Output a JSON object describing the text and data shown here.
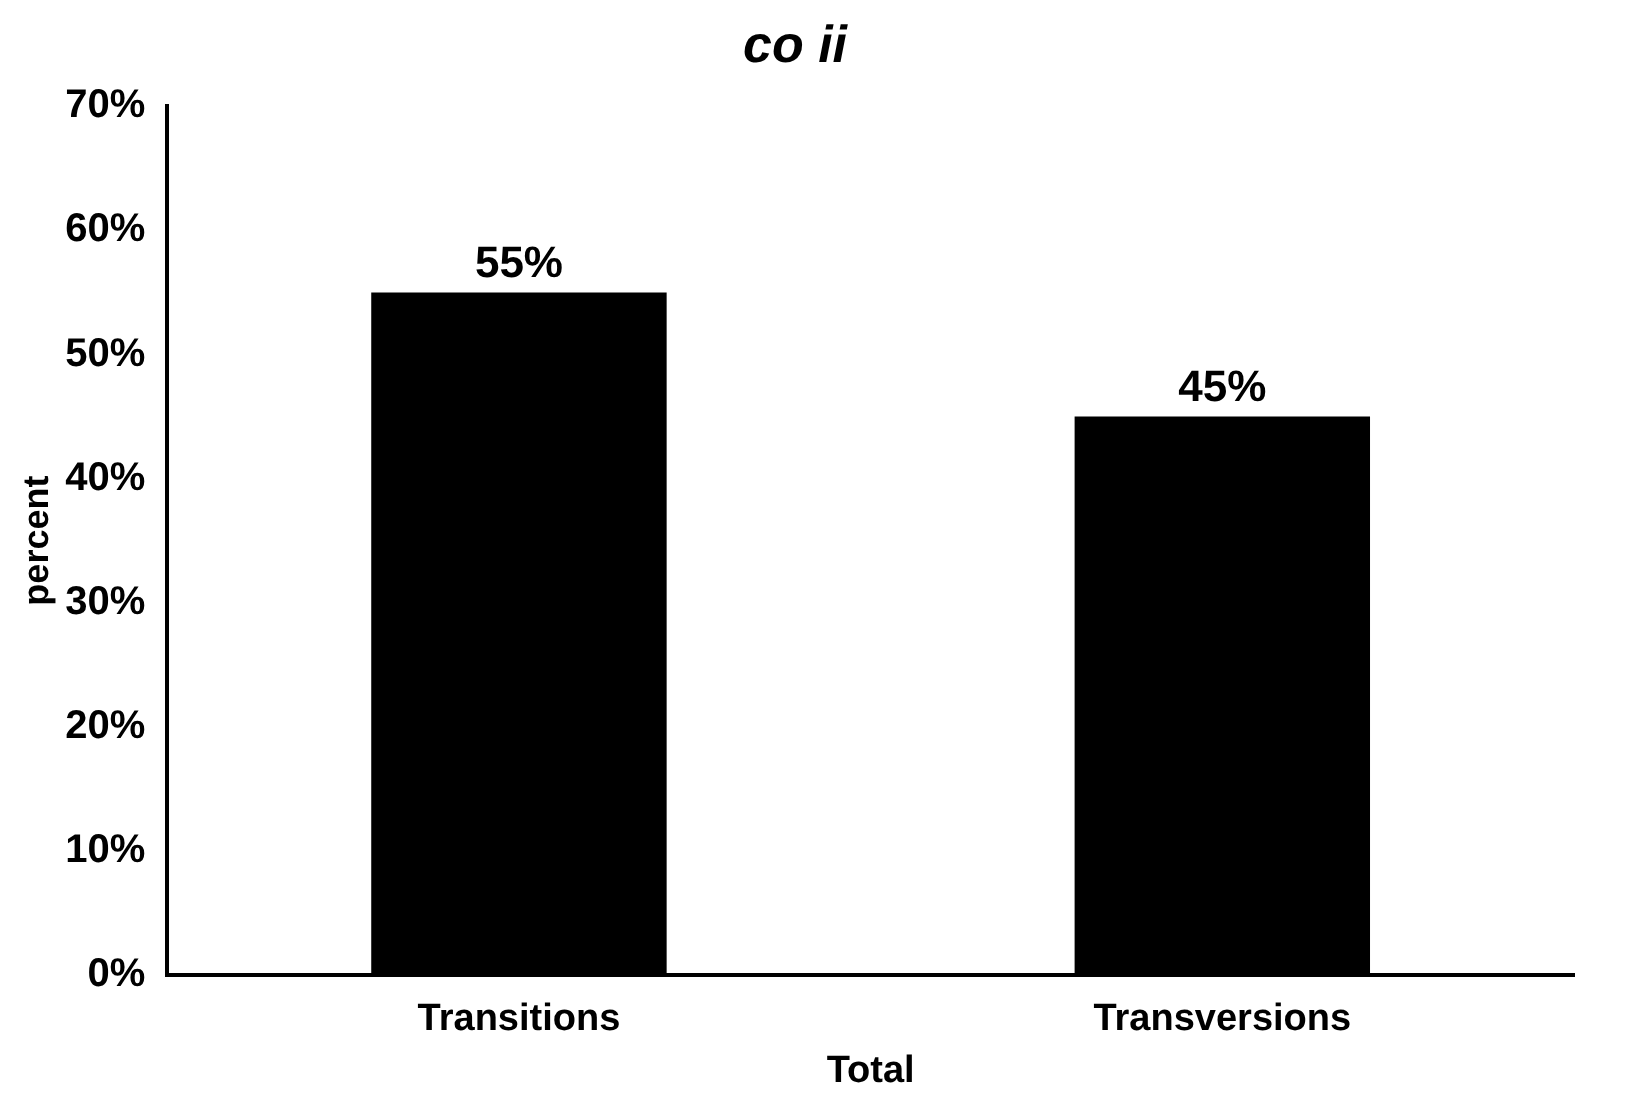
{
  "chart_data": {
    "type": "bar",
    "title": "co ii",
    "xlabel": "Total",
    "ylabel": "percent",
    "categories": [
      "Transitions",
      "Transversions"
    ],
    "series": [
      {
        "color": "#000000",
        "values": [
          55,
          45
        ]
      }
    ],
    "value_labels": [
      "55%",
      "45%"
    ],
    "ylim": [
      0,
      70
    ],
    "yticks": [
      {
        "value": 0,
        "label": "0%"
      },
      {
        "value": 10,
        "label": "10%"
      },
      {
        "value": 20,
        "label": "20%"
      },
      {
        "value": 30,
        "label": "30%"
      },
      {
        "value": 40,
        "label": "40%"
      },
      {
        "value": 50,
        "label": "50%"
      },
      {
        "value": 60,
        "label": "60%"
      },
      {
        "value": 70,
        "label": "70%"
      }
    ],
    "grid": false,
    "legend": false
  }
}
